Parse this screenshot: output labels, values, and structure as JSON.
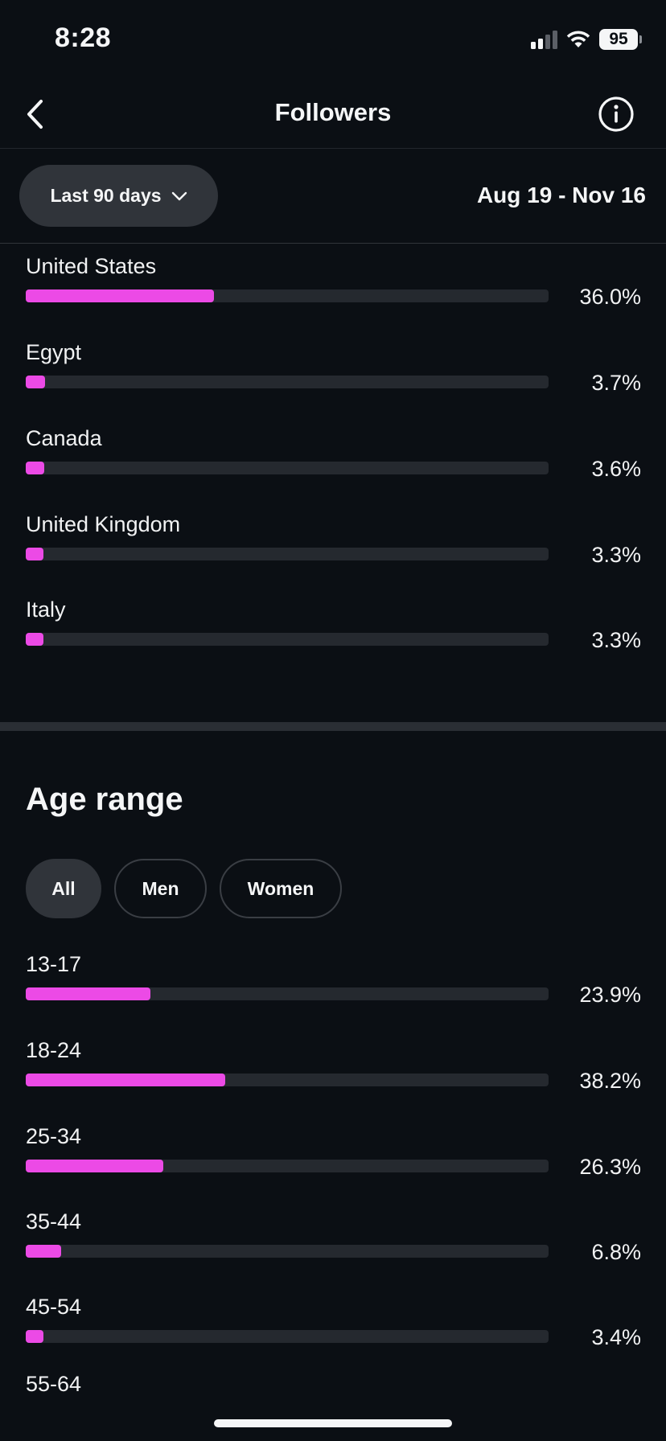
{
  "status_bar": {
    "time": "8:28",
    "battery": "95",
    "icons": [
      "cellular-signal-icon",
      "wifi-icon",
      "battery-icon"
    ]
  },
  "nav": {
    "title": "Followers",
    "back_icon": "chevron-left-icon",
    "info_icon": "info-circle-icon"
  },
  "filter": {
    "range_label": "Last 90 days",
    "range_icon": "chevron-down-icon",
    "date_range": "Aug 19 - Nov 16"
  },
  "colors": {
    "accent": "#ec4ae6",
    "track": "#25292f",
    "background": "#0b0f14"
  },
  "countries": [
    {
      "label": "United States",
      "value": "36.0%",
      "fill": 0.36
    },
    {
      "label": "Egypt",
      "value": "3.7%",
      "fill": 0.037
    },
    {
      "label": "Canada",
      "value": "3.6%",
      "fill": 0.036
    },
    {
      "label": "United Kingdom",
      "value": "3.3%",
      "fill": 0.033
    },
    {
      "label": "Italy",
      "value": "3.3%",
      "fill": 0.033
    }
  ],
  "age_section": {
    "title": "Age range",
    "tabs": [
      {
        "label": "All",
        "active": true
      },
      {
        "label": "Men",
        "active": false
      },
      {
        "label": "Women",
        "active": false
      }
    ],
    "ranges": [
      {
        "label": "13-17",
        "value": "23.9%",
        "fill": 0.239
      },
      {
        "label": "18-24",
        "value": "38.2%",
        "fill": 0.382
      },
      {
        "label": "25-34",
        "value": "26.3%",
        "fill": 0.263
      },
      {
        "label": "35-44",
        "value": "6.8%",
        "fill": 0.068
      },
      {
        "label": "45-54",
        "value": "3.4%",
        "fill": 0.034
      }
    ],
    "partial_next_label": "55-64"
  }
}
